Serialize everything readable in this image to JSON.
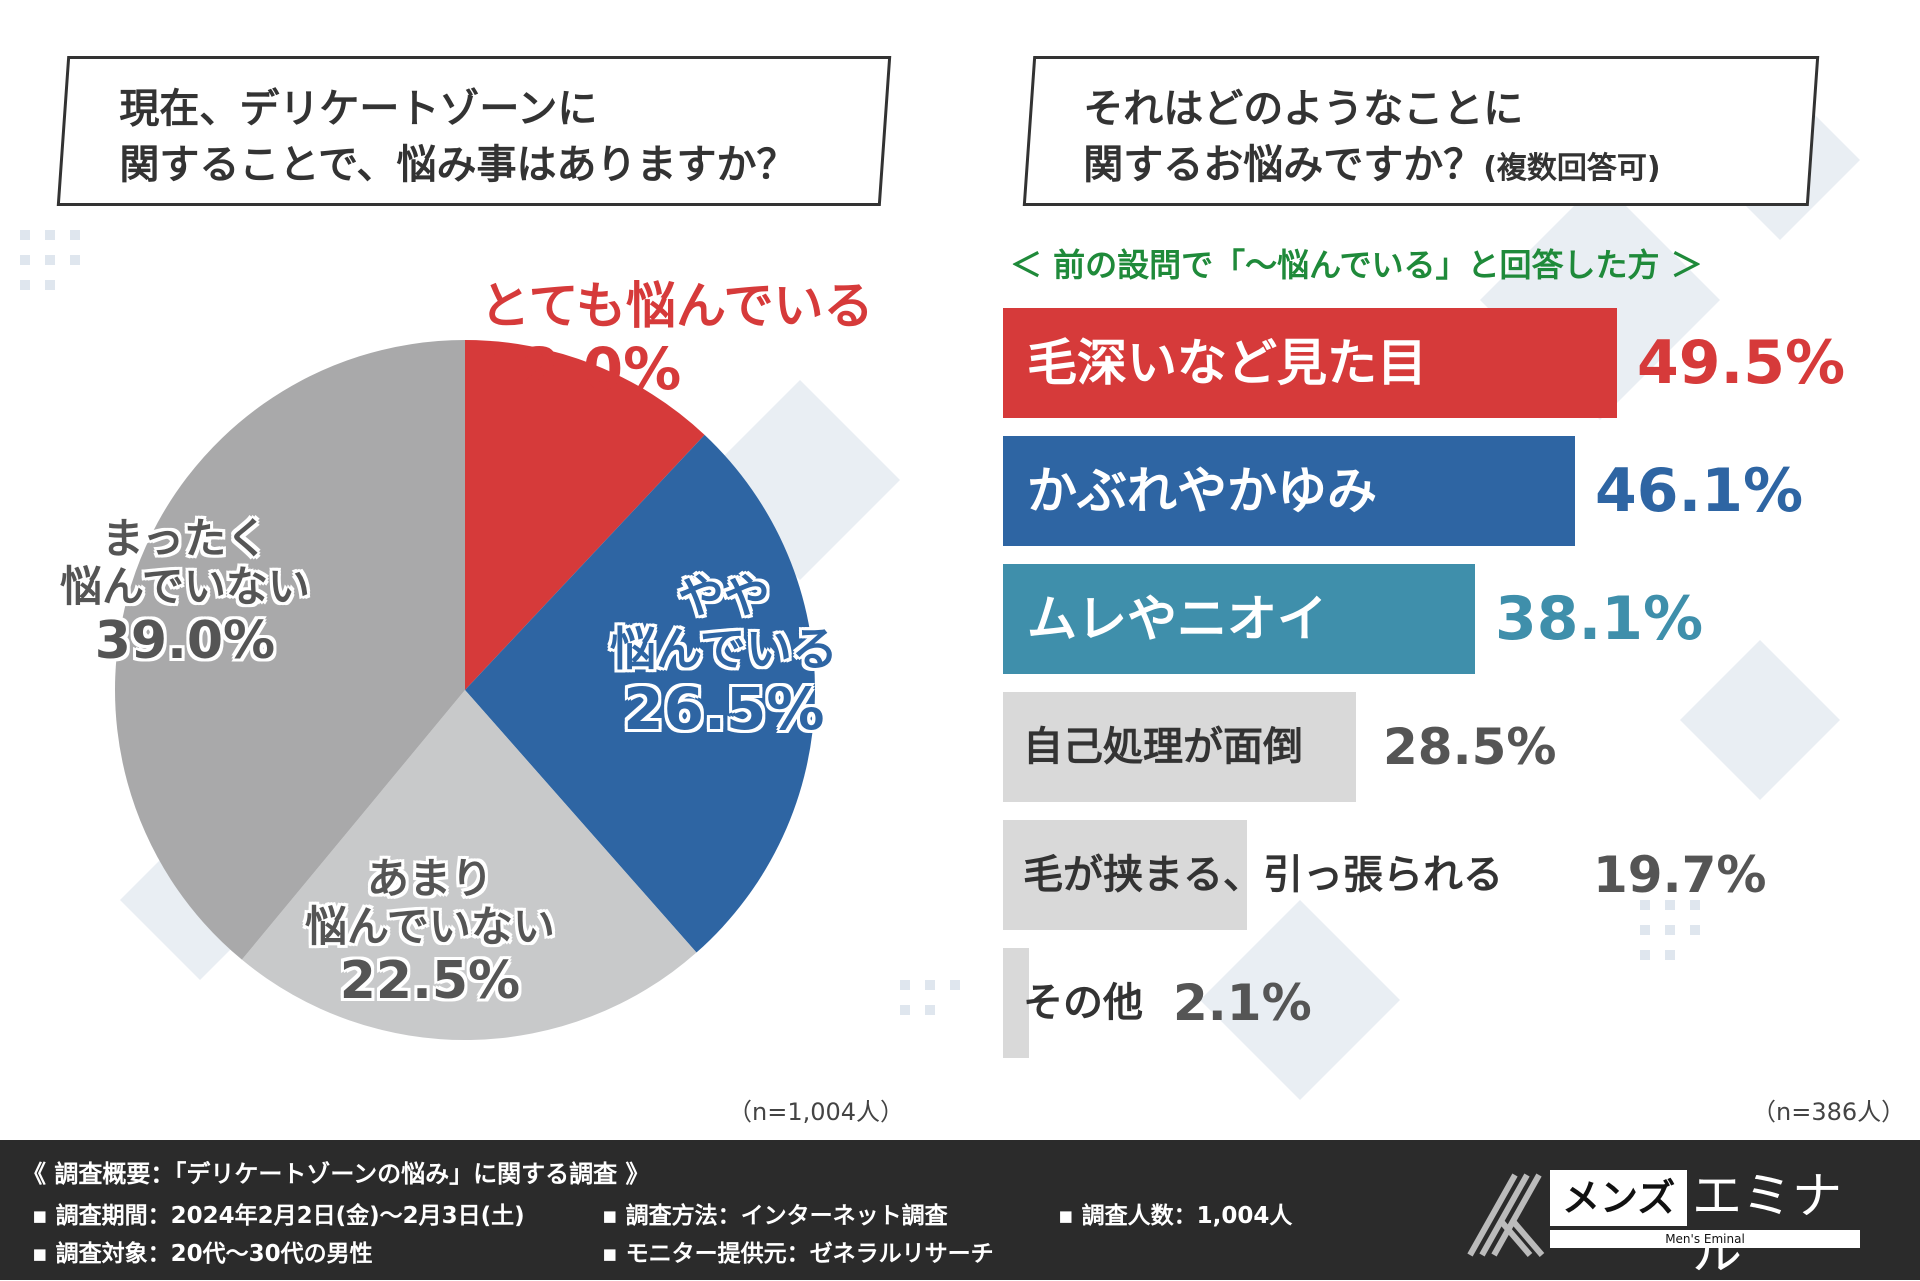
{
  "left_question": {
    "line1": "現在、デリケートゾーンに",
    "line2": "関することで、悩み事はありますか？"
  },
  "right_question": {
    "line1": "それはどのようなことに",
    "line2": "関するお悩みですか？",
    "line2_suffix": "(複数回答可)"
  },
  "subheading": "＜ 前の設問で「～悩んでいる」と回答した方 ＞",
  "chart_data": [
    {
      "type": "pie",
      "title": "現在、デリケートゾーンに関することで、悩み事はありますか？",
      "n_note": "（n=1,004人）",
      "slices": [
        {
          "label_lines": [
            "とても悩んでいる"
          ],
          "value": 12.0,
          "display": "12.0%",
          "color": "#d63a3a"
        },
        {
          "label_lines": [
            "やや",
            "悩んでいる"
          ],
          "value": 26.5,
          "display": "26.5%",
          "color": "#2e65a3"
        },
        {
          "label_lines": [
            "あまり",
            "悩んでいない"
          ],
          "value": 22.5,
          "display": "22.5%",
          "color": "#c8c9ca"
        },
        {
          "label_lines": [
            "まったく",
            "悩んでいない"
          ],
          "value": 39.0,
          "display": "39.0%",
          "color": "#a9a9aa"
        }
      ]
    },
    {
      "type": "bar",
      "title": "それはどのようなことに関するお悩みですか？(複数回答可)",
      "n_note": "（n=386人）",
      "categories": [
        "毛深いなど見た目",
        "かぶれやかゆみ",
        "ムレやニオイ",
        "自己処理が面倒",
        "毛が挟まる、引っ張られる",
        "その他"
      ],
      "values": [
        49.5,
        46.1,
        38.1,
        28.5,
        19.7,
        2.1
      ],
      "display": [
        "49.5%",
        "46.1%",
        "38.1%",
        "28.5%",
        "19.7%",
        "2.1%"
      ],
      "colors": [
        "#d63a3a",
        "#2e65a3",
        "#3f8fab",
        "#d9d9d9",
        "#d9d9d9",
        "#d9d9d9"
      ],
      "label_colors": [
        "#ffffff",
        "#ffffff",
        "#ffffff",
        "#333333",
        "#333333",
        "#333333"
      ],
      "pct_colors": [
        "#d63a3a",
        "#2e65a3",
        "#3f8fab",
        "#555555",
        "#555555",
        "#555555"
      ],
      "xlim": [
        0,
        100
      ]
    }
  ],
  "footer": {
    "title": "《 調査概要：「デリケートゾーンの悩み」に関する調査 》",
    "period": "▪ 調査期間：2024年2月2日(金)～2月3日(土)",
    "method": "▪ 調査方法：インターネット調査",
    "count": "▪ 調査人数：1,004人",
    "target": "▪ 調査対象：20代～30代の男性",
    "provider": "▪ モニター提供元：ゼネラルリサーチ"
  },
  "logo": {
    "part1": "メンズ",
    "part2": "エミナル",
    "tagline": "Men's Eminal"
  }
}
